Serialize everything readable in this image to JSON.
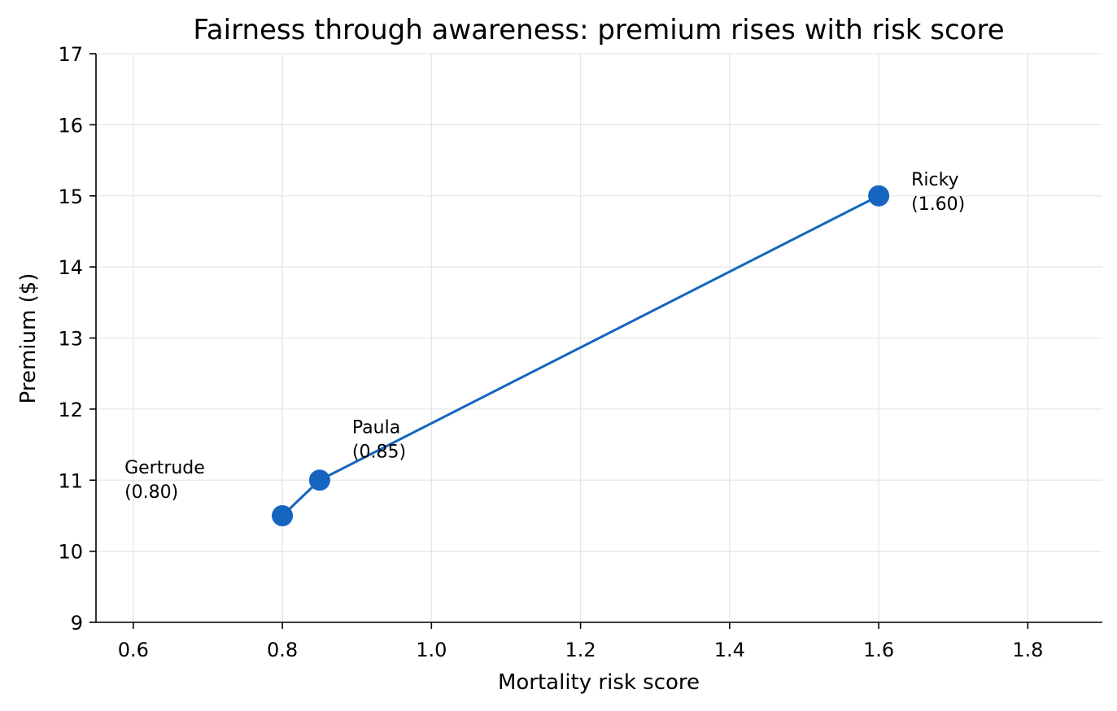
{
  "chart_data": {
    "type": "line",
    "title": "Fairness through awareness: premium rises with risk score",
    "xlabel": "Mortality risk score",
    "ylabel": "Premium ($)",
    "xlim": [
      0.55,
      1.9
    ],
    "ylim": [
      9,
      17
    ],
    "xticks": [
      0.6,
      0.8,
      1.0,
      1.2,
      1.4,
      1.6,
      1.8
    ],
    "xtick_labels": [
      "0.6",
      "0.8",
      "1.0",
      "1.2",
      "1.4",
      "1.6",
      "1.8"
    ],
    "yticks": [
      9,
      10,
      11,
      12,
      13,
      14,
      15,
      16,
      17
    ],
    "ytick_labels": [
      "9",
      "10",
      "11",
      "12",
      "13",
      "14",
      "15",
      "16",
      "17"
    ],
    "grid": true,
    "color": "#1565c0",
    "points": [
      {
        "x": 0.8,
        "y": 10.5,
        "name": "Gertrude",
        "score_label": "(0.80)"
      },
      {
        "x": 0.85,
        "y": 11.0,
        "name": "Paula",
        "score_label": "(0.85)"
      },
      {
        "x": 1.6,
        "y": 15.0,
        "name": "Ricky",
        "score_label": "(1.60)"
      }
    ]
  }
}
